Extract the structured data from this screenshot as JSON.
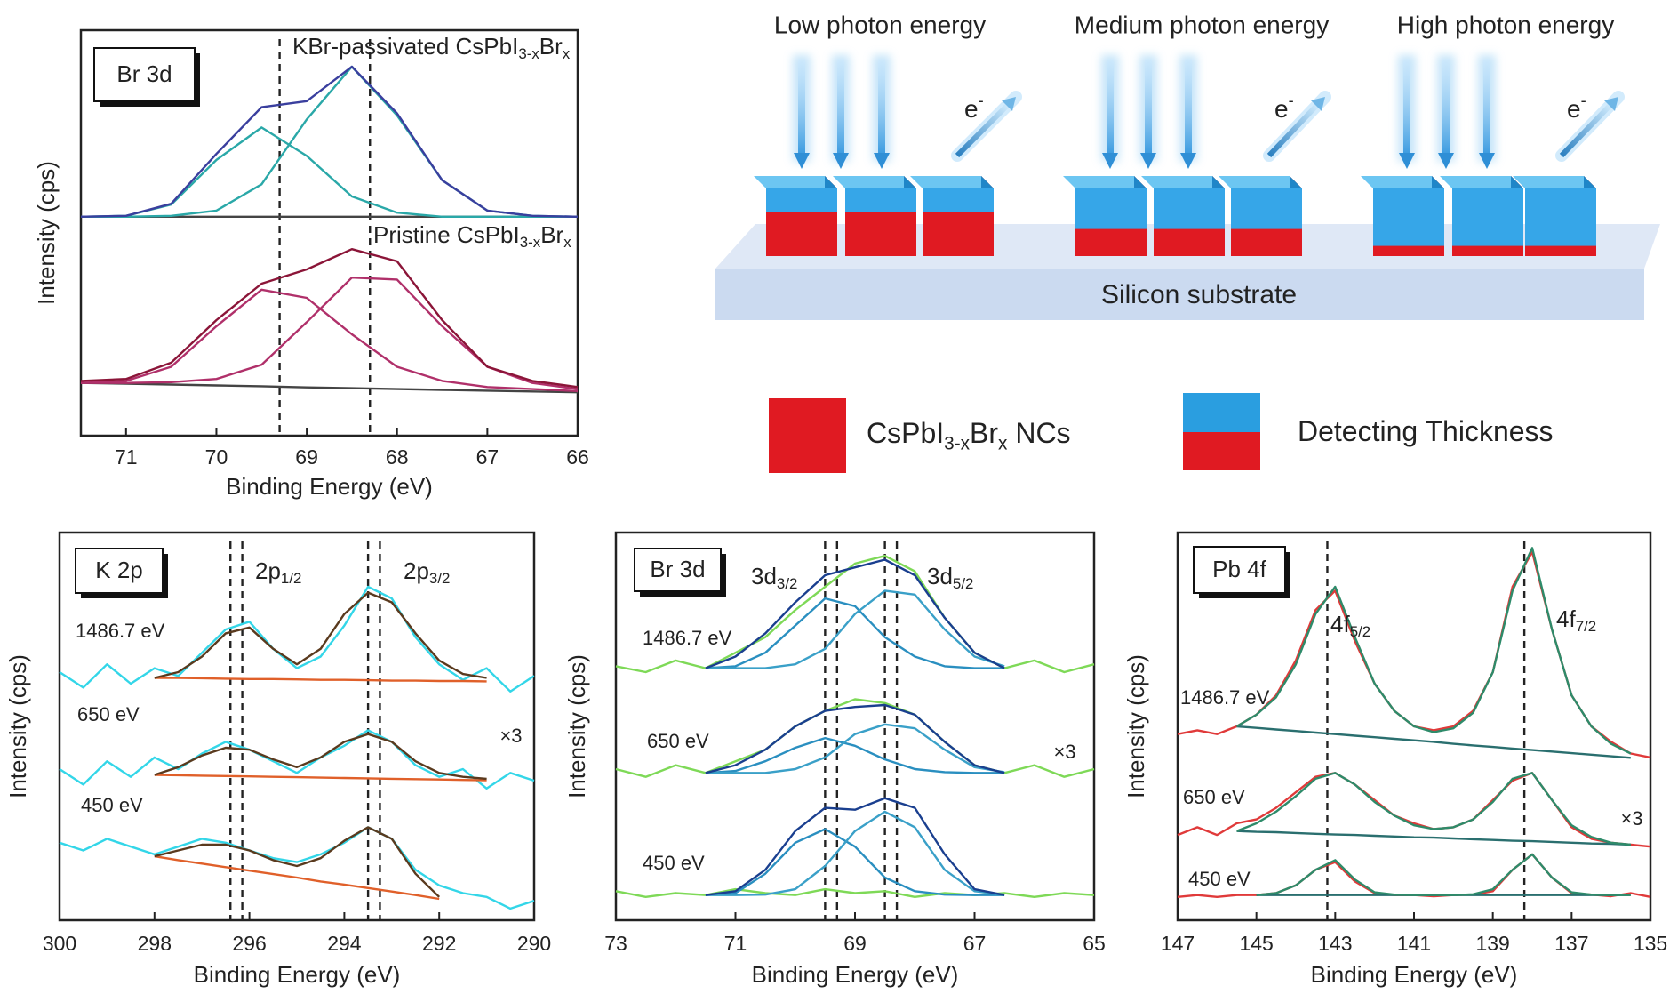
{
  "chart_data": [
    {
      "type": "line",
      "panel_label": "Br 3d",
      "x_label": "Binding Energy (eV)",
      "y_label": "Intensity (cps)",
      "annotations": [
        [
          "KBr-passivated CsPbI",
          "3-x",
          "Br",
          "x"
        ],
        [
          "Pristine CsPbI",
          "3-x",
          "Br",
          "x"
        ]
      ],
      "xlim": [
        71.5,
        66
      ],
      "xticks": [
        71,
        70,
        69,
        68,
        67,
        66
      ],
      "ylim": [
        0,
        10
      ],
      "vlines": [
        69.3,
        68.3
      ],
      "x": [
        71.5,
        71,
        70.5,
        70,
        69.5,
        69,
        68.5,
        68,
        67.5,
        67,
        66.5,
        66
      ],
      "series": [
        {
          "color": "#444444",
          "values": [
            5.4,
            5.4,
            5.4,
            5.4,
            5.4,
            5.4,
            5.4,
            5.4,
            5.4,
            5.4,
            5.4,
            5.4
          ]
        },
        {
          "color": "#2aa8a8",
          "values": [
            5.4,
            5.42,
            5.7,
            6.8,
            7.6,
            6.9,
            5.9,
            5.5,
            5.4,
            5.4,
            5.4,
            5.4
          ]
        },
        {
          "color": "#2aa8a8",
          "values": [
            5.4,
            5.4,
            5.42,
            5.55,
            6.2,
            7.8,
            9.1,
            7.9,
            6.3,
            5.55,
            5.42,
            5.4
          ]
        },
        {
          "color": "#3a3f9e",
          "values": [
            5.4,
            5.42,
            5.72,
            6.95,
            8.1,
            8.25,
            9.1,
            7.95,
            6.3,
            5.55,
            5.42,
            5.4
          ]
        },
        {
          "color": "#444444",
          "values": [
            1.3,
            1.28,
            1.26,
            1.24,
            1.22,
            1.19,
            1.17,
            1.15,
            1.13,
            1.11,
            1.09,
            1.07
          ]
        },
        {
          "color": "#b0306a",
          "values": [
            1.3,
            1.35,
            1.7,
            2.7,
            3.6,
            3.4,
            2.5,
            1.7,
            1.35,
            1.2,
            1.15,
            1.1
          ]
        },
        {
          "color": "#b0306a",
          "values": [
            1.3,
            1.3,
            1.32,
            1.4,
            1.75,
            2.8,
            3.9,
            3.85,
            2.7,
            1.7,
            1.3,
            1.15
          ]
        },
        {
          "color": "#8b1538",
          "values": [
            1.35,
            1.4,
            1.8,
            2.85,
            3.75,
            4.1,
            4.6,
            4.3,
            2.85,
            1.7,
            1.35,
            1.2
          ]
        }
      ]
    },
    {
      "type": "line",
      "panel_label": "K 2p",
      "x_label": "Binding Energy (eV)",
      "y_label": "Intensity (cps)",
      "annotations": [
        [
          "2p",
          "1/2"
        ],
        [
          "2p",
          "3/2"
        ]
      ],
      "spectrum_labels": [
        "1486.7 eV",
        "650 eV",
        "450 eV"
      ],
      "scale_note": "×3",
      "xlim": [
        300,
        290
      ],
      "xticks": [
        300,
        298,
        296,
        294,
        292,
        290
      ],
      "ylim": [
        0,
        10
      ],
      "vlines": [
        296.4,
        296.15,
        293.5,
        293.25
      ],
      "x": [
        300,
        299.5,
        299,
        298.5,
        298,
        297.5,
        297,
        296.5,
        296,
        295.5,
        295,
        294.5,
        294,
        293.5,
        293,
        292.5,
        292,
        291.5,
        291,
        290.5,
        290
      ],
      "series": [
        {
          "color": "#33d6e8",
          "values": [
            6.4,
            6.0,
            6.6,
            6.1,
            6.5,
            6.3,
            6.9,
            7.5,
            7.7,
            7.0,
            6.5,
            6.8,
            7.6,
            8.6,
            8.3,
            7.3,
            6.6,
            6.2,
            6.5,
            5.9,
            6.3
          ]
        },
        {
          "color": "#e0602a",
          "values": [
            null,
            null,
            null,
            null,
            6.25,
            6.25,
            6.24,
            6.23,
            6.22,
            6.22,
            6.21,
            6.2,
            6.2,
            6.19,
            6.18,
            6.18,
            6.17,
            6.17,
            6.16,
            null,
            null
          ]
        },
        {
          "color": "#5a3a1e",
          "values": [
            null,
            null,
            null,
            null,
            6.25,
            6.4,
            6.8,
            7.4,
            7.55,
            7.0,
            6.6,
            7.0,
            7.9,
            8.45,
            8.2,
            7.4,
            6.7,
            6.35,
            6.25,
            null,
            null
          ]
        },
        {
          "color": "#33d6e8",
          "values": [
            3.9,
            3.5,
            4.1,
            3.7,
            4.2,
            3.9,
            4.3,
            4.6,
            4.4,
            4.1,
            3.8,
            4.2,
            4.5,
            4.9,
            4.6,
            4.0,
            3.7,
            3.9,
            3.4,
            3.8,
            3.6
          ]
        },
        {
          "color": "#e0602a",
          "values": [
            null,
            null,
            null,
            null,
            3.75,
            3.74,
            3.73,
            3.72,
            3.71,
            3.7,
            3.69,
            3.68,
            3.67,
            3.66,
            3.65,
            3.64,
            3.63,
            3.62,
            3.61,
            null,
            null
          ]
        },
        {
          "color": "#5a3a1e",
          "values": [
            null,
            null,
            null,
            null,
            3.75,
            3.95,
            4.25,
            4.45,
            4.4,
            4.15,
            3.95,
            4.2,
            4.6,
            4.8,
            4.6,
            4.1,
            3.8,
            3.7,
            3.65,
            null,
            null
          ]
        },
        {
          "color": "#33d6e8",
          "values": [
            2.0,
            1.8,
            2.1,
            1.9,
            1.7,
            1.9,
            2.1,
            2.0,
            1.8,
            1.6,
            1.5,
            1.7,
            2.0,
            2.4,
            2.1,
            1.3,
            0.9,
            0.7,
            0.6,
            0.3,
            0.5
          ]
        },
        {
          "color": "#e0602a",
          "values": [
            null,
            null,
            null,
            null,
            1.65,
            1.55,
            1.46,
            1.37,
            1.28,
            1.19,
            1.1,
            1.0,
            0.92,
            0.83,
            0.74,
            0.65,
            0.55,
            null,
            null,
            null,
            null
          ]
        },
        {
          "color": "#5a3a1e",
          "values": [
            null,
            null,
            null,
            null,
            1.65,
            1.8,
            1.95,
            1.95,
            1.8,
            1.55,
            1.4,
            1.6,
            2.05,
            2.4,
            2.1,
            1.2,
            0.6,
            null,
            null,
            null,
            null
          ]
        }
      ]
    },
    {
      "type": "line",
      "panel_label": "Br 3d",
      "x_label": "Binding Energy (eV)",
      "y_label": "Intensity (cps)",
      "annotations": [
        [
          "3d",
          "3/2"
        ],
        [
          "3d",
          "5/2"
        ]
      ],
      "spectrum_labels": [
        "1486.7 eV",
        "650 eV",
        "450 eV"
      ],
      "scale_note": "×3",
      "xlim": [
        73,
        65
      ],
      "xticks": [
        73,
        71,
        69,
        67,
        65
      ],
      "ylim": [
        0,
        10
      ],
      "vlines": [
        69.5,
        69.3,
        68.5,
        68.3
      ],
      "x": [
        73,
        72.5,
        72,
        71.5,
        71,
        70.5,
        70,
        69.5,
        69,
        68.5,
        68,
        67.5,
        67,
        66.5,
        66,
        65.5,
        65
      ],
      "series": [
        {
          "color": "#7ed957",
          "values": [
            6.55,
            6.4,
            6.7,
            6.5,
            6.9,
            7.3,
            8.0,
            8.6,
            9.2,
            9.4,
            9.0,
            7.8,
            6.9,
            6.5,
            6.7,
            6.4,
            6.6
          ]
        },
        {
          "color": "#2a8fc0",
          "values": [
            null,
            null,
            null,
            6.5,
            6.55,
            6.9,
            7.6,
            8.3,
            8.1,
            7.3,
            6.8,
            6.55,
            6.5,
            6.5,
            null,
            null,
            null
          ]
        },
        {
          "color": "#3aa0c8",
          "values": [
            null,
            null,
            null,
            6.5,
            6.5,
            6.5,
            6.6,
            7.0,
            7.9,
            8.5,
            8.4,
            7.5,
            6.8,
            6.55,
            null,
            null,
            null
          ]
        },
        {
          "color": "#1a3f8f",
          "values": [
            null,
            null,
            null,
            6.5,
            6.8,
            7.4,
            8.2,
            8.9,
            9.1,
            9.3,
            8.9,
            7.8,
            6.9,
            6.5,
            null,
            null,
            null
          ]
        },
        {
          "color": "#7ed957",
          "values": [
            3.9,
            3.7,
            4.0,
            3.8,
            4.1,
            4.4,
            5.0,
            5.4,
            5.7,
            5.6,
            5.3,
            4.6,
            4.0,
            3.8,
            4.0,
            3.7,
            3.9
          ]
        },
        {
          "color": "#2a8fc0",
          "values": [
            null,
            null,
            null,
            3.8,
            3.85,
            4.1,
            4.45,
            4.7,
            4.5,
            4.15,
            3.9,
            3.82,
            3.8,
            3.8,
            null,
            null,
            null
          ]
        },
        {
          "color": "#3aa0c8",
          "values": [
            null,
            null,
            null,
            3.8,
            3.8,
            3.8,
            3.9,
            4.2,
            4.8,
            5.05,
            4.95,
            4.4,
            3.95,
            3.82,
            null,
            null,
            null
          ]
        },
        {
          "color": "#1a3f8f",
          "values": [
            null,
            null,
            null,
            3.8,
            4.0,
            4.4,
            5.0,
            5.4,
            5.5,
            5.55,
            5.3,
            4.6,
            4.0,
            3.8,
            null,
            null,
            null
          ]
        },
        {
          "color": "#7ed957",
          "values": [
            0.75,
            0.6,
            0.7,
            0.65,
            0.8,
            0.7,
            0.65,
            0.8,
            0.7,
            0.75,
            0.6,
            0.7,
            0.65,
            0.7,
            0.6,
            0.7,
            0.65
          ]
        },
        {
          "color": "#2a8fc0",
          "values": [
            null,
            null,
            null,
            0.65,
            0.7,
            1.2,
            2.0,
            2.35,
            1.9,
            1.1,
            0.75,
            0.66,
            0.65,
            0.65,
            null,
            null,
            null
          ]
        },
        {
          "color": "#3aa0c8",
          "values": [
            null,
            null,
            null,
            0.65,
            0.65,
            0.66,
            0.8,
            1.4,
            2.3,
            2.8,
            2.4,
            1.3,
            0.75,
            0.66,
            null,
            null,
            null
          ]
        },
        {
          "color": "#1a3f8f",
          "values": [
            null,
            null,
            null,
            0.65,
            0.75,
            1.3,
            2.3,
            2.9,
            2.85,
            3.15,
            2.9,
            1.7,
            0.8,
            0.65,
            null,
            null,
            null
          ]
        }
      ]
    },
    {
      "type": "line",
      "panel_label": "Pb 4f",
      "x_label": "Binding Energy (eV)",
      "y_label": "Intensity (cps)",
      "annotations": [
        [
          "4f",
          "5/2"
        ],
        [
          "4f",
          "7/2"
        ]
      ],
      "spectrum_labels": [
        "1486.7 eV",
        "650 eV",
        "450 eV"
      ],
      "scale_note": "×3",
      "xlim": [
        147,
        135
      ],
      "xticks": [
        147,
        145,
        143,
        141,
        139,
        137,
        135
      ],
      "ylim": [
        0,
        10
      ],
      "vlines": [
        143.2,
        138.2
      ],
      "x": [
        147,
        146.5,
        146,
        145.5,
        145,
        144.5,
        144,
        143.5,
        143,
        142.5,
        142,
        141.5,
        141,
        140.5,
        140,
        139.5,
        139,
        138.5,
        138,
        137.5,
        137,
        136.5,
        136,
        135.5,
        135
      ],
      "series": [
        {
          "color": "#e03a3a",
          "values": [
            4.8,
            4.9,
            4.8,
            5.0,
            5.3,
            5.8,
            6.7,
            8.0,
            8.5,
            7.2,
            6.1,
            5.4,
            5.0,
            4.9,
            5.0,
            5.4,
            6.4,
            8.6,
            9.5,
            7.5,
            5.8,
            5.0,
            4.6,
            4.3,
            4.2
          ]
        },
        {
          "color": "#2a6f6f",
          "values": [
            null,
            null,
            null,
            5.0,
            4.96,
            4.92,
            4.88,
            4.84,
            4.8,
            4.76,
            4.72,
            4.68,
            4.64,
            4.6,
            4.55,
            4.51,
            4.47,
            4.43,
            4.39,
            4.35,
            4.31,
            4.27,
            4.23,
            4.19,
            null
          ]
        },
        {
          "color": "#2e8b6a",
          "values": [
            null,
            null,
            null,
            5.0,
            5.3,
            5.75,
            6.6,
            7.9,
            8.6,
            7.3,
            6.1,
            5.4,
            5.0,
            4.85,
            4.95,
            5.35,
            6.4,
            8.5,
            9.6,
            7.5,
            5.8,
            5.0,
            4.55,
            4.3,
            null
          ]
        },
        {
          "color": "#e03a3a",
          "values": [
            2.2,
            2.4,
            2.2,
            2.5,
            2.6,
            2.9,
            3.3,
            3.7,
            3.8,
            3.5,
            3.1,
            2.7,
            2.5,
            2.35,
            2.4,
            2.6,
            3.1,
            3.6,
            3.8,
            3.1,
            2.4,
            2.1,
            2.0,
            1.95,
            1.9
          ]
        },
        {
          "color": "#2a6f6f",
          "values": [
            null,
            null,
            null,
            2.3,
            2.28,
            2.27,
            2.25,
            2.23,
            2.21,
            2.2,
            2.18,
            2.16,
            2.14,
            2.13,
            2.11,
            2.09,
            2.07,
            2.05,
            2.04,
            2.02,
            2.0,
            1.98,
            1.97,
            1.95,
            null
          ]
        },
        {
          "color": "#2e8b6a",
          "values": [
            null,
            null,
            null,
            2.3,
            2.5,
            2.8,
            3.2,
            3.65,
            3.8,
            3.5,
            3.05,
            2.7,
            2.45,
            2.35,
            2.4,
            2.6,
            3.05,
            3.65,
            3.8,
            3.1,
            2.45,
            2.15,
            2.0,
            1.95,
            null
          ]
        },
        {
          "color": "#e03a3a",
          "values": [
            0.6,
            0.65,
            0.6,
            0.65,
            0.65,
            0.7,
            0.9,
            1.3,
            1.5,
            1.0,
            0.7,
            0.65,
            0.65,
            0.62,
            0.65,
            0.66,
            0.75,
            1.3,
            1.7,
            1.1,
            0.7,
            0.66,
            0.62,
            0.7,
            0.6
          ]
        },
        {
          "color": "#2a6f6f",
          "values": [
            null,
            null,
            null,
            null,
            0.65,
            0.65,
            0.65,
            0.65,
            0.65,
            0.65,
            0.65,
            0.65,
            0.65,
            0.65,
            0.65,
            0.65,
            0.65,
            0.65,
            0.65,
            0.65,
            0.65,
            0.65,
            0.65,
            0.65,
            null
          ]
        },
        {
          "color": "#2e8b6a",
          "values": [
            null,
            null,
            null,
            null,
            0.65,
            0.7,
            0.9,
            1.3,
            1.55,
            1.05,
            0.72,
            0.66,
            0.65,
            0.65,
            0.65,
            0.67,
            0.8,
            1.3,
            1.7,
            1.1,
            0.72,
            0.66,
            0.65,
            0.65,
            null
          ]
        }
      ]
    }
  ],
  "schematic": {
    "titles": [
      "Low photon energy",
      "Medium photon energy",
      "High photon energy"
    ],
    "electron_label": [
      "e",
      "-"
    ],
    "substrate": "Silicon substrate",
    "legend": [
      [
        "CsPbI",
        "3-x",
        "Br",
        "x",
        " NCs"
      ],
      [
        "Detecting Thickness"
      ]
    ]
  }
}
